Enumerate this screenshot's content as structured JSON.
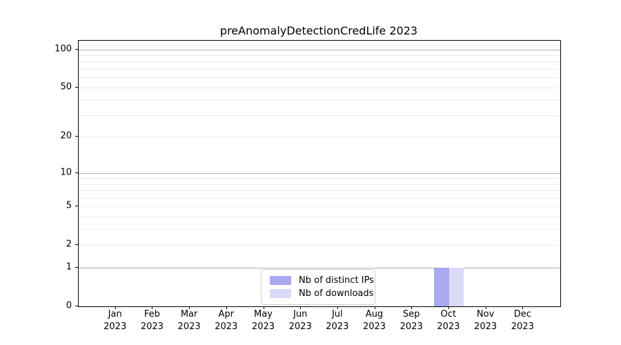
{
  "title": "preAnomalyDetectionCredLife 2023",
  "chart_data": {
    "type": "bar",
    "categories": [
      "Jan 2023",
      "Feb 2023",
      "Mar 2023",
      "Apr 2023",
      "May 2023",
      "Jun 2023",
      "Jul 2023",
      "Aug 2023",
      "Sep 2023",
      "Oct 2023",
      "Nov 2023",
      "Dec 2023"
    ],
    "series": [
      {
        "name": "Nb of distinct IPs",
        "color": "#a9a9f0",
        "values": [
          0,
          0,
          0,
          0,
          0,
          0,
          0,
          0,
          0,
          1,
          0,
          0
        ]
      },
      {
        "name": "Nb of downloads",
        "color": "#dadaf8",
        "values": [
          0,
          0,
          0,
          0,
          0,
          0,
          0,
          0,
          0,
          1,
          0,
          0
        ]
      }
    ],
    "yscale": "log1p",
    "ylim": [
      0,
      117
    ],
    "y_ticks": [
      0,
      1,
      2,
      5,
      10,
      20,
      50,
      100
    ],
    "major_gridlines": [
      1,
      10,
      100
    ],
    "minor_gridlines": [
      2,
      3,
      4,
      5,
      6,
      7,
      8,
      9,
      20,
      30,
      40,
      50,
      60,
      70,
      80,
      90
    ],
    "grid": "horizontal",
    "legend_position": "lower center",
    "xlabel": "",
    "ylabel": ""
  },
  "colors": {
    "grid_major": "#b0b0b0",
    "grid_minor": "#ebebeb",
    "spine": "#000000",
    "background": "#ffffff"
  }
}
